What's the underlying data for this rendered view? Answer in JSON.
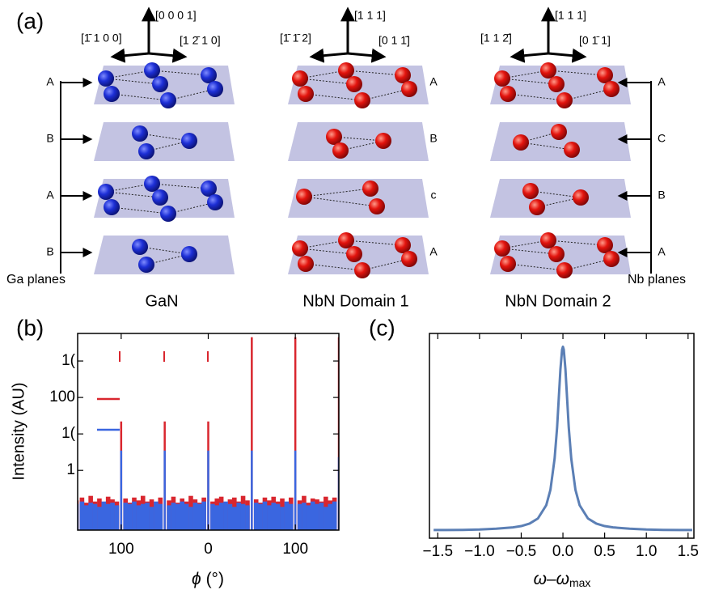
{
  "panel_a": {
    "label": "(a)",
    "structures": [
      {
        "name": "GaN",
        "axis_up": "[0 0 0 1]",
        "axis_left": "[1̄ 1 0 0]",
        "axis_right": "[1 2̄ 1 0]",
        "layers": [
          "A",
          "B",
          "A",
          "B"
        ]
      },
      {
        "name": "NbN Domain 1",
        "axis_up": "[1 1 1]",
        "axis_left": "[1̄ 1̄ 2]",
        "axis_right": "[0 1 1̄]",
        "layers": [
          "A",
          "B",
          "c",
          "A"
        ]
      },
      {
        "name": "NbN Domain 2",
        "axis_up": "[1 1 1]",
        "axis_left": "[1 1 2̄]",
        "axis_right": "[0 1̄ 1]",
        "layers": [
          "A",
          "C",
          "B",
          "A"
        ]
      }
    ],
    "ga_planes": "Ga planes",
    "nb_planes": "Nb planes"
  },
  "chart_data": [
    {
      "type": "spikes",
      "panel_label": "(b)",
      "y_label": "Intensity (AU)",
      "x_label_symbol": "ϕ",
      "x_label": "(°)",
      "x": [
        -180,
        -174,
        -168,
        -162,
        -156,
        -150,
        -144,
        -138,
        -132,
        -126,
        -120,
        -114,
        -108,
        -102,
        -96,
        -90,
        -84,
        -78,
        -72,
        -66,
        -60,
        -54,
        -48,
        -42,
        -36,
        -30,
        -24,
        -18,
        -12,
        -6,
        0,
        6,
        12,
        18,
        24,
        30,
        36,
        42,
        48,
        54,
        60,
        66,
        72,
        78,
        84,
        90,
        96,
        102,
        108,
        114,
        120,
        126,
        132,
        138,
        144,
        150,
        156,
        162,
        168,
        174,
        180
      ],
      "series": [
        {
          "color": "#d9262e",
          "values": [
            0.15,
            0.18,
            0.13,
            0.2,
            0.14,
            0.17,
            0.12,
            0.19,
            0.16,
            0.14,
            22,
            0.17,
            0.13,
            0.18,
            0.15,
            0.2,
            0.14,
            0.16,
            0.12,
            0.18,
            22,
            0.15,
            0.19,
            0.13,
            0.17,
            0.14,
            0.2,
            0.16,
            0.13,
            0.18,
            22,
            0.14,
            0.17,
            0.19,
            0.12,
            0.16,
            0.18,
            0.14,
            0.2,
            0.15,
            4500,
            0.16,
            0.13,
            0.18,
            0.15,
            0.19,
            0.14,
            0.17,
            0.12,
            0.18,
            4500,
            0.15,
            0.2,
            0.13,
            0.17,
            0.16,
            0.14,
            0.19,
            0.15,
            0.18,
            4500
          ]
        },
        {
          "color": "#3a66e0",
          "values": [
            0.12,
            0.14,
            0.11,
            0.13,
            0.12,
            0.1,
            0.14,
            0.12,
            0.13,
            0.11,
            3.5,
            0.13,
            0.12,
            0.14,
            0.11,
            0.12,
            0.13,
            0.1,
            0.14,
            0.12,
            3.5,
            0.11,
            0.13,
            0.12,
            0.14,
            0.12,
            0.1,
            0.13,
            0.12,
            0.14,
            3.5,
            0.12,
            0.11,
            0.13,
            0.14,
            0.12,
            0.1,
            0.13,
            0.12,
            0.11,
            3.5,
            0.13,
            0.12,
            0.14,
            0.11,
            0.13,
            0.12,
            0.1,
            0.14,
            0.12,
            3.5,
            0.12,
            0.13,
            0.11,
            0.14,
            0.12,
            0.13,
            0.1,
            0.12,
            0.14,
            2.3
          ]
        }
      ],
      "xlim": [
        -180,
        180
      ],
      "xticks": [
        {
          "value": -120,
          "label": "100"
        },
        0,
        {
          "value": 120,
          "label": "100"
        }
      ],
      "ylim": [
        0.023,
        5700
      ],
      "log_y": true,
      "yticks": [
        {
          "value": 1000,
          "label": "1("
        },
        100,
        {
          "value": 10,
          "label": "1("
        },
        1
      ]
    },
    {
      "type": "line",
      "panel_label": "(c)",
      "x_label": "ω–ω",
      "x_label_subscript": "max",
      "color": "#5b7fb5",
      "x": [
        -1.55,
        -1.4,
        -1.2,
        -1.0,
        -0.8,
        -0.6,
        -0.5,
        -0.4,
        -0.3,
        -0.2,
        -0.15,
        -0.1,
        -0.07,
        -0.05,
        -0.03,
        -0.01,
        0,
        0.01,
        0.03,
        0.05,
        0.07,
        0.1,
        0.15,
        0.2,
        0.3,
        0.4,
        0.5,
        0.6,
        0.8,
        1.0,
        1.2,
        1.4,
        1.55
      ],
      "values": [
        0.033,
        0.033,
        0.034,
        0.036,
        0.04,
        0.047,
        0.054,
        0.067,
        0.094,
        0.164,
        0.245,
        0.409,
        0.573,
        0.727,
        0.881,
        0.985,
        1.0,
        0.985,
        0.881,
        0.727,
        0.573,
        0.409,
        0.245,
        0.164,
        0.094,
        0.067,
        0.054,
        0.047,
        0.04,
        0.036,
        0.034,
        0.033,
        0.033
      ],
      "xlim": [
        -1.6,
        1.57
      ],
      "xticks": [
        {
          "value": -1.5,
          "label": "−1.5"
        },
        {
          "value": -1,
          "label": "−1.0"
        },
        {
          "value": -0.5,
          "label": "−0.5"
        },
        {
          "value": 0,
          "label": "0.0"
        },
        0.5,
        {
          "value": 1,
          "label": "1.0"
        },
        1.5
      ],
      "ylim": [
        -0.01,
        1.07
      ]
    }
  ]
}
